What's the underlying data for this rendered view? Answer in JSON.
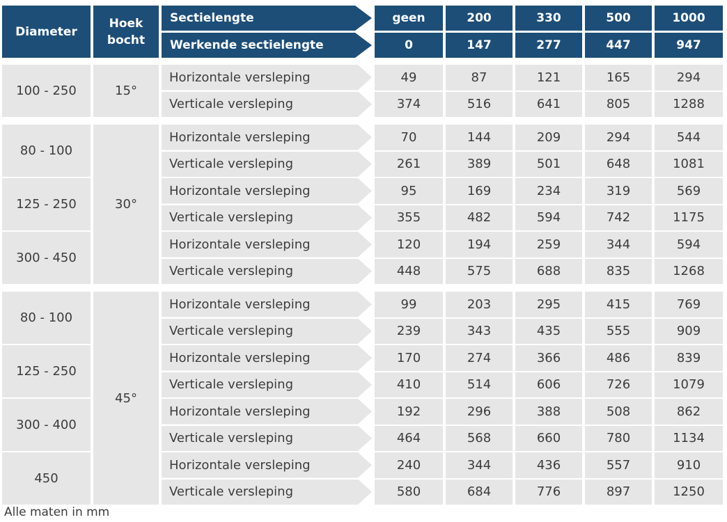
{
  "header": {
    "diameter": "Diameter",
    "hoek_bocht": "Hoek bocht",
    "sectielengte": "Sectielengte",
    "werkende_sectielengte": "Werkende sectielengte",
    "sectielengte_values": [
      "geen",
      "200",
      "330",
      "500",
      "1000"
    ],
    "werkende_values": [
      "0",
      "147",
      "277",
      "447",
      "947"
    ]
  },
  "groups": [
    {
      "angle": "15°",
      "diameters": [
        {
          "label": "100 - 250",
          "rows": [
            {
              "type": "Horizontale versleping",
              "values": [
                "49",
                "87",
                "121",
                "165",
                "294"
              ]
            },
            {
              "type": "Verticale versleping",
              "values": [
                "374",
                "516",
                "641",
                "805",
                "1288"
              ]
            }
          ]
        }
      ]
    },
    {
      "angle": "30°",
      "diameters": [
        {
          "label": "80 - 100",
          "rows": [
            {
              "type": "Horizontale versleping",
              "values": [
                "70",
                "144",
                "209",
                "294",
                "544"
              ]
            },
            {
              "type": "Verticale versleping",
              "values": [
                "261",
                "389",
                "501",
                "648",
                "1081"
              ]
            }
          ]
        },
        {
          "label": "125 - 250",
          "rows": [
            {
              "type": "Horizontale versleping",
              "values": [
                "95",
                "169",
                "234",
                "319",
                "569"
              ]
            },
            {
              "type": "Verticale versleping",
              "values": [
                "355",
                "482",
                "594",
                "742",
                "1175"
              ]
            }
          ]
        },
        {
          "label": "300 - 450",
          "rows": [
            {
              "type": "Horizontale versleping",
              "values": [
                "120",
                "194",
                "259",
                "344",
                "594"
              ]
            },
            {
              "type": "Verticale versleping",
              "values": [
                "448",
                "575",
                "688",
                "835",
                "1268"
              ]
            }
          ]
        }
      ]
    },
    {
      "angle": "45°",
      "diameters": [
        {
          "label": "80 - 100",
          "rows": [
            {
              "type": "Horizontale versleping",
              "values": [
                "99",
                "203",
                "295",
                "415",
                "769"
              ]
            },
            {
              "type": "Verticale versleping",
              "values": [
                "239",
                "343",
                "435",
                "555",
                "909"
              ]
            }
          ]
        },
        {
          "label": "125 - 250",
          "rows": [
            {
              "type": "Horizontale versleping",
              "values": [
                "170",
                "274",
                "366",
                "486",
                "839"
              ]
            },
            {
              "type": "Verticale versleping",
              "values": [
                "410",
                "514",
                "606",
                "726",
                "1079"
              ]
            }
          ]
        },
        {
          "label": "300 - 400",
          "rows": [
            {
              "type": "Horizontale versleping",
              "values": [
                "192",
                "296",
                "388",
                "508",
                "862"
              ]
            },
            {
              "type": "Verticale versleping",
              "values": [
                "464",
                "568",
                "660",
                "780",
                "1134"
              ]
            }
          ]
        },
        {
          "label": "450",
          "rows": [
            {
              "type": "Horizontale versleping",
              "values": [
                "240",
                "344",
                "436",
                "557",
                "910"
              ]
            },
            {
              "type": "Verticale versleping",
              "values": [
                "580",
                "684",
                "776",
                "897",
                "1250"
              ]
            }
          ]
        }
      ]
    }
  ],
  "footer": {
    "note": "Alle maten in mm"
  },
  "colors": {
    "header_bg": "#1d4e77",
    "header_text": "#ffffff",
    "body_bg": "#e6e6e7",
    "body_text": "#3c3c3c"
  }
}
